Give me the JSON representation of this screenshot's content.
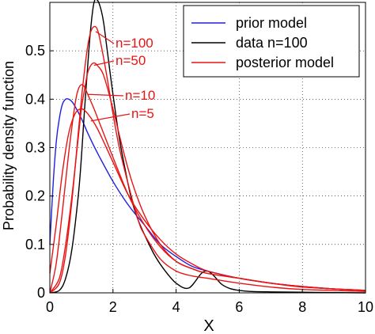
{
  "chart_data": {
    "type": "line",
    "xlabel": "X",
    "ylabel": "Probability density function",
    "xlim": [
      0,
      10
    ],
    "ylim": [
      0,
      0.6
    ],
    "xticks": [
      0,
      2,
      4,
      6,
      8,
      10
    ],
    "yticks": [
      0,
      0.1,
      0.2,
      0.3,
      0.4,
      0.5
    ],
    "grid": "dotted",
    "legend": {
      "position": "top-right",
      "entries": [
        {
          "label": "prior model",
          "color": "#1f1fe0"
        },
        {
          "label": "data n=100",
          "color": "#000000"
        },
        {
          "label": "posterior model",
          "color": "#e81414"
        }
      ]
    },
    "annotations": [
      "n=100",
      "n=50",
      "n=10",
      "n=5"
    ],
    "annotation_color": "#e81414",
    "series": [
      {
        "name": "prior model",
        "color": "#1f1fe0",
        "x": [
          0,
          0.1,
          0.2,
          0.3,
          0.4,
          0.5,
          0.6,
          0.7,
          0.8,
          1.0,
          1.2,
          1.5,
          2.0,
          2.5,
          3.0,
          3.5,
          4.0,
          4.5,
          5.0,
          6.0,
          7.0,
          8.0,
          9.0,
          10.0
        ],
        "y": [
          0.1,
          0.22,
          0.31,
          0.36,
          0.39,
          0.4,
          0.4,
          0.395,
          0.385,
          0.36,
          0.33,
          0.29,
          0.23,
          0.18,
          0.14,
          0.1,
          0.075,
          0.055,
          0.045,
          0.03,
          0.02,
          0.013,
          0.008,
          0.005
        ]
      },
      {
        "name": "data n=100",
        "color": "#000000",
        "x": [
          0,
          0.3,
          0.5,
          0.7,
          0.9,
          1.0,
          1.1,
          1.2,
          1.3,
          1.4,
          1.5,
          1.6,
          1.7,
          1.8,
          2.0,
          2.2,
          2.4,
          2.6,
          2.8,
          3.0,
          3.3,
          3.6,
          4.0,
          4.4,
          4.8,
          5.0,
          5.2,
          5.5,
          6.0,
          7.0,
          10.0
        ],
        "y": [
          0,
          0.005,
          0.03,
          0.09,
          0.2,
          0.28,
          0.38,
          0.47,
          0.55,
          0.6,
          0.605,
          0.59,
          0.56,
          0.51,
          0.41,
          0.32,
          0.25,
          0.19,
          0.15,
          0.12,
          0.08,
          0.05,
          0.02,
          0.01,
          0.04,
          0.045,
          0.035,
          0.015,
          0.005,
          0.002,
          0
        ]
      },
      {
        "name": "n=100",
        "color": "#e81414",
        "x": [
          0,
          0.3,
          0.5,
          0.7,
          0.9,
          1.0,
          1.1,
          1.2,
          1.3,
          1.4,
          1.5,
          1.6,
          1.8,
          2.0,
          2.2,
          2.5,
          2.8,
          3.0,
          3.5,
          4.0,
          4.5,
          5.0,
          6.0,
          7.0,
          8.0,
          10.0
        ],
        "y": [
          0,
          0.02,
          0.08,
          0.19,
          0.33,
          0.4,
          0.46,
          0.51,
          0.54,
          0.55,
          0.545,
          0.52,
          0.45,
          0.37,
          0.3,
          0.22,
          0.15,
          0.12,
          0.07,
          0.045,
          0.035,
          0.03,
          0.02,
          0.012,
          0.007,
          0.003
        ]
      },
      {
        "name": "n=50",
        "color": "#e81414",
        "x": [
          0,
          0.3,
          0.5,
          0.7,
          0.9,
          1.0,
          1.1,
          1.2,
          1.3,
          1.4,
          1.5,
          1.7,
          2.0,
          2.3,
          2.6,
          3.0,
          3.5,
          4.0,
          4.5,
          5.0,
          6.0,
          7.0,
          8.0,
          10.0
        ],
        "y": [
          0,
          0.03,
          0.1,
          0.2,
          0.32,
          0.38,
          0.42,
          0.455,
          0.47,
          0.475,
          0.47,
          0.45,
          0.38,
          0.3,
          0.23,
          0.16,
          0.1,
          0.065,
          0.05,
          0.04,
          0.03,
          0.02,
          0.012,
          0.005
        ]
      },
      {
        "name": "n=10",
        "color": "#e81414",
        "x": [
          0,
          0.2,
          0.4,
          0.6,
          0.8,
          0.9,
          1.0,
          1.1,
          1.2,
          1.4,
          1.7,
          2.0,
          2.5,
          3.0,
          3.5,
          4.0,
          4.5,
          5.0,
          6.0,
          7.0,
          8.0,
          9.0,
          10.0
        ],
        "y": [
          0,
          0.06,
          0.17,
          0.29,
          0.39,
          0.42,
          0.43,
          0.425,
          0.41,
          0.38,
          0.33,
          0.28,
          0.2,
          0.14,
          0.095,
          0.065,
          0.05,
          0.04,
          0.03,
          0.02,
          0.013,
          0.008,
          0.005
        ]
      },
      {
        "name": "n=5",
        "color": "#e81414",
        "x": [
          0,
          0.2,
          0.4,
          0.6,
          0.8,
          1.0,
          1.2,
          1.5,
          2.0,
          2.5,
          3.0,
          3.5,
          4.0,
          4.5,
          5.0,
          6.0,
          7.0,
          8.0,
          9.0,
          10.0
        ],
        "y": [
          0.04,
          0.14,
          0.25,
          0.33,
          0.37,
          0.38,
          0.37,
          0.34,
          0.27,
          0.2,
          0.15,
          0.11,
          0.08,
          0.06,
          0.045,
          0.03,
          0.02,
          0.013,
          0.008,
          0.005
        ]
      }
    ]
  }
}
